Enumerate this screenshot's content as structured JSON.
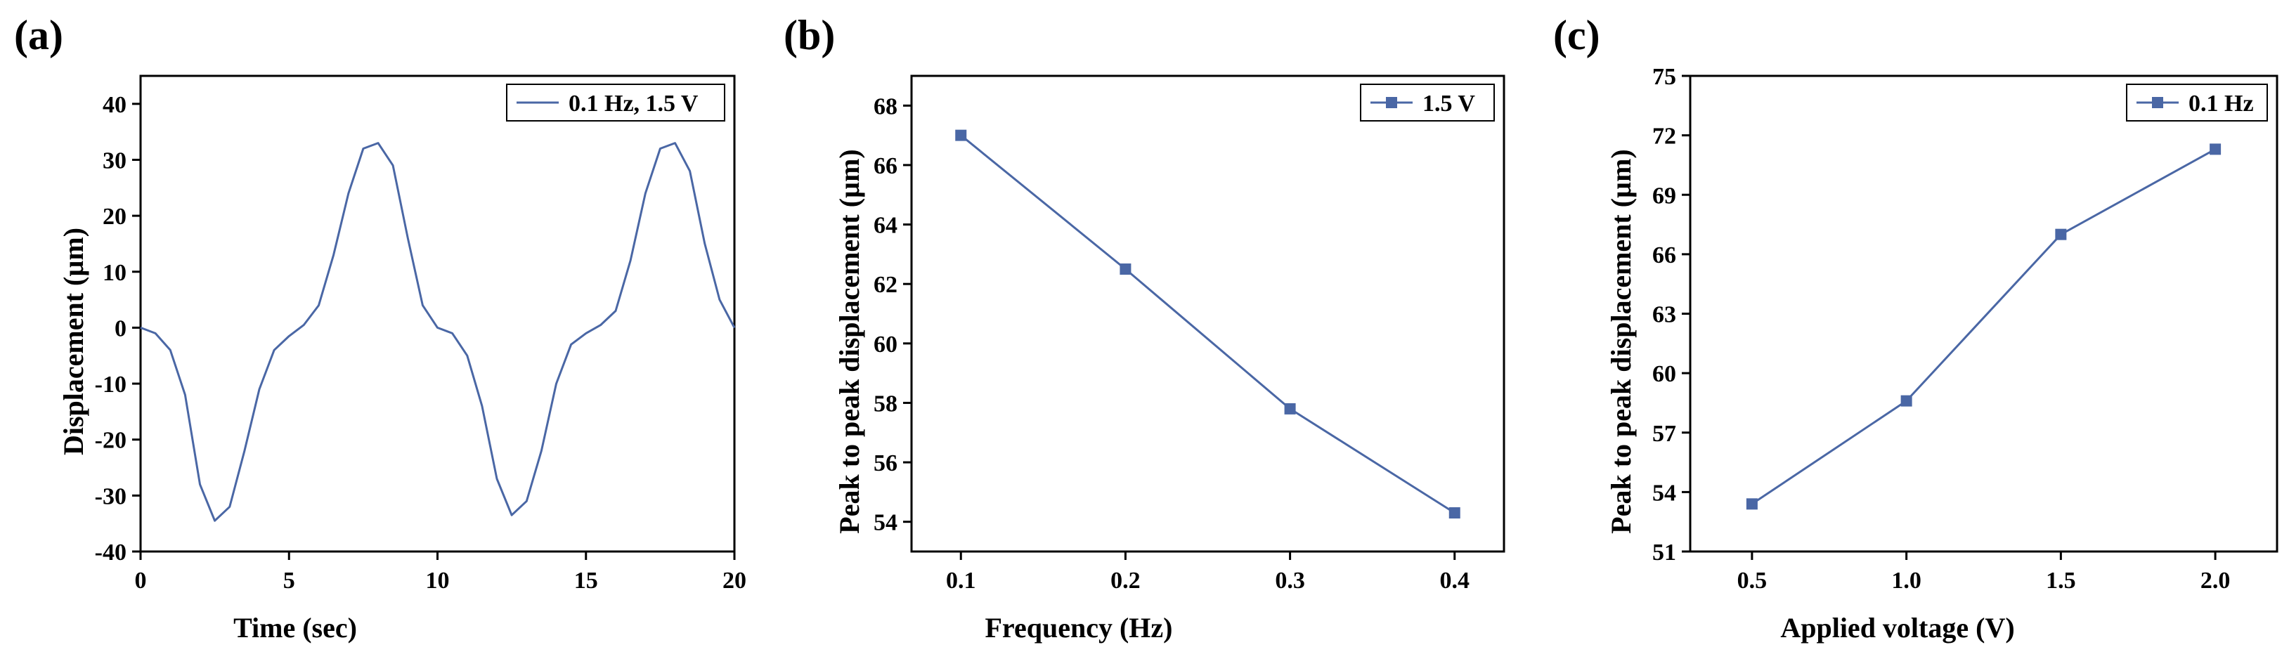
{
  "panels": [
    {
      "letter": "(a)",
      "chart_data": {
        "type": "line",
        "title": "",
        "xlabel": "Time (sec)",
        "ylabel": "Displacement (µm)",
        "xlim": [
          0,
          20
        ],
        "ylim": [
          -40,
          45
        ],
        "xticks": [
          0,
          5,
          10,
          15,
          20
        ],
        "yticks": [
          -40,
          -30,
          -20,
          -10,
          0,
          10,
          20,
          30,
          40
        ],
        "legend_position": "top-right",
        "series": [
          {
            "name": "0.1 Hz, 1.5 V",
            "color": "#4a67a5",
            "markers": false,
            "x": [
              0,
              0.5,
              1,
              1.5,
              2,
              2.5,
              3,
              3.5,
              4,
              4.5,
              5,
              5.5,
              6,
              6.5,
              7,
              7.5,
              8,
              8.5,
              9,
              9.5,
              10,
              10.5,
              11,
              11.5,
              12,
              12.5,
              13,
              13.5,
              14,
              14.5,
              15,
              15.5,
              16,
              16.5,
              17,
              17.5,
              18,
              18.5,
              19,
              19.5,
              20
            ],
            "y": [
              0,
              -1,
              -4,
              -12,
              -28,
              -34.5,
              -32,
              -22,
              -11,
              -4,
              -1.5,
              0.5,
              4,
              13,
              24,
              32,
              33,
              29,
              16,
              4,
              0,
              -1,
              -5,
              -14,
              -27,
              -33.5,
              -31,
              -22,
              -10,
              -3,
              -1,
              0.5,
              3,
              12,
              24,
              32,
              33,
              28,
              15,
              5,
              0
            ]
          }
        ]
      }
    },
    {
      "letter": "(b)",
      "chart_data": {
        "type": "line",
        "title": "",
        "xlabel": "Frequency (Hz)",
        "ylabel": "Peak to peak displacement (µm)",
        "xlim": [
          0.07,
          0.43
        ],
        "ylim": [
          53,
          69
        ],
        "xticks": [
          "0.1",
          "0.2",
          "0.3",
          "0.4"
        ],
        "yticks": [
          "54",
          "56",
          "58",
          "60",
          "62",
          "64",
          "66",
          "68"
        ],
        "legend_position": "top-right",
        "series": [
          {
            "name": "1.5 V",
            "color": "#4a67a5",
            "markers": true,
            "x": [
              0.1,
              0.2,
              0.3,
              0.4
            ],
            "y": [
              67.0,
              62.5,
              57.8,
              54.3
            ]
          }
        ]
      }
    },
    {
      "letter": "(c)",
      "chart_data": {
        "type": "line",
        "title": "",
        "xlabel": "Applied voltage (V)",
        "ylabel": "Peak to peak displacement (µm)",
        "xlim": [
          0.3,
          2.2
        ],
        "ylim": [
          51,
          75
        ],
        "xticks": [
          "0.5",
          "1.0",
          "1.5",
          "2.0"
        ],
        "yticks": [
          "51",
          "54",
          "57",
          "60",
          "63",
          "66",
          "69",
          "72",
          "75"
        ],
        "legend_position": "top-right",
        "series": [
          {
            "name": "0.1 Hz",
            "color": "#4a67a5",
            "markers": true,
            "x": [
              0.5,
              1.0,
              1.5,
              2.0
            ],
            "y": [
              53.4,
              58.6,
              67.0,
              71.3
            ]
          }
        ]
      }
    }
  ]
}
